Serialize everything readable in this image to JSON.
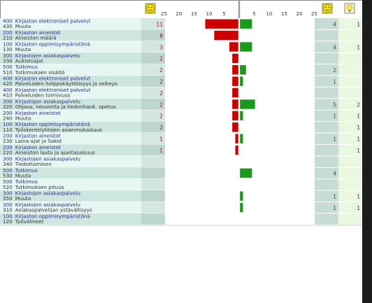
{
  "chart_data": {
    "type": "bar",
    "orientation": "horizontal-diverging",
    "axis": {
      "left_ticks": [
        "25",
        "20",
        "15",
        "10",
        "5"
      ],
      "right_ticks": [
        "5",
        "10",
        "15",
        "20",
        "25"
      ],
      "max": 25
    },
    "header_icons": {
      "left": "sad-face-icon",
      "right": "happy-face-icon",
      "far_right": "lightbulb-icon"
    },
    "colors": {
      "negative": "#cc0000",
      "positive": "#1a9a1a",
      "row_even": "#e6f6f2",
      "row_odd": "#cde6e0",
      "right_col": "#eaf8e2",
      "header": "#ffffff"
    },
    "rows": [
      {
        "code1": "400",
        "cat": "Kirjaston elektroniset palvelut",
        "code2": "430",
        "sub": "Muuta",
        "neg": 11,
        "pos": 4,
        "ideas": 1
      },
      {
        "code1": "200",
        "cat": "Kirjaston aineistot",
        "code2": "210",
        "sub": "Aineiston määrä",
        "neg": 8,
        "pos": null,
        "ideas": null
      },
      {
        "code1": "100",
        "cat": "Kirjaston oppimisympäristönä",
        "code2": "130",
        "sub": "Muuta",
        "neg": 3,
        "pos": 4,
        "ideas": 1
      },
      {
        "code1": "300",
        "cat": "Kirjastojen asiakaspalvelu",
        "code2": "330",
        "sub": "Aukioloajat",
        "neg": 2,
        "pos": null,
        "ideas": null
      },
      {
        "code1": "500",
        "cat": "Tutkimus",
        "code2": "510",
        "sub": "Tutkimuksen sisältö",
        "neg": 2,
        "pos": 2,
        "ideas": null
      },
      {
        "code1": "400",
        "cat": "Kirjaston elektroniset palvelut",
        "code2": "420",
        "sub": "Palveluiden helppokäyttöisyys ja selkeys",
        "neg": 2,
        "pos": 1,
        "ideas": null
      },
      {
        "code1": "400",
        "cat": "Kirjaston elektroniset palvelut",
        "code2": "410",
        "sub": "Palveluiden toimivuus",
        "neg": 2,
        "pos": null,
        "ideas": null
      },
      {
        "code1": "300",
        "cat": "Kirjastojen asiakaspalvelu",
        "code2": "320",
        "sub": "Ohjaus, neuvonta ja tiedonhank. opetus",
        "neg": 2,
        "pos": 5,
        "ideas": 2
      },
      {
        "code1": "200",
        "cat": "Kirjaston aineistot",
        "code2": "240",
        "sub": "Muuta",
        "neg": 2,
        "pos": 1,
        "ideas": 1
      },
      {
        "code1": "100",
        "cat": "Kirjaston oppimisympäristönä",
        "code2": "110",
        "sub": "Työskentelytilojen asianmukaisuus",
        "neg": 2,
        "pos": null,
        "ideas": 1
      },
      {
        "code1": "200",
        "cat": "Kirjaston aineistot",
        "code2": "230",
        "sub": "Laina-ajat ja Sakot",
        "neg": 1,
        "pos": 1,
        "ideas": 1
      },
      {
        "code1": "200",
        "cat": "Kirjaston aineistot",
        "code2": "220",
        "sub": "Aineiston laatu ja ajantasaisuus",
        "neg": 1,
        "pos": null,
        "ideas": 1
      },
      {
        "code1": "300",
        "cat": "Kirjastojen asiakaspalvelu",
        "code2": "340",
        "sub": "Tiedottaminen",
        "neg": null,
        "pos": null,
        "ideas": null
      },
      {
        "code1": "500",
        "cat": "Tutkimus",
        "code2": "530",
        "sub": "Muuta",
        "neg": null,
        "pos": 4,
        "ideas": null
      },
      {
        "code1": "500",
        "cat": "Tutkimus",
        "code2": "520",
        "sub": "Tutkimuksen pituus",
        "neg": null,
        "pos": null,
        "ideas": null
      },
      {
        "code1": "300",
        "cat": "Kirjastojen asiakaspalvelu",
        "code2": "350",
        "sub": "Muuta",
        "neg": null,
        "pos": 1,
        "ideas": 1
      },
      {
        "code1": "300",
        "cat": "Kirjastojen asiakaspalvelu",
        "code2": "310",
        "sub": "Asiakaspalvelijan ystävällisyys",
        "neg": null,
        "pos": 1,
        "ideas": 1
      },
      {
        "code1": "100",
        "cat": "Kirjaston oppimisympäristönä",
        "code2": "120",
        "sub": "Työvälineet",
        "neg": null,
        "pos": null,
        "ideas": null
      }
    ]
  }
}
